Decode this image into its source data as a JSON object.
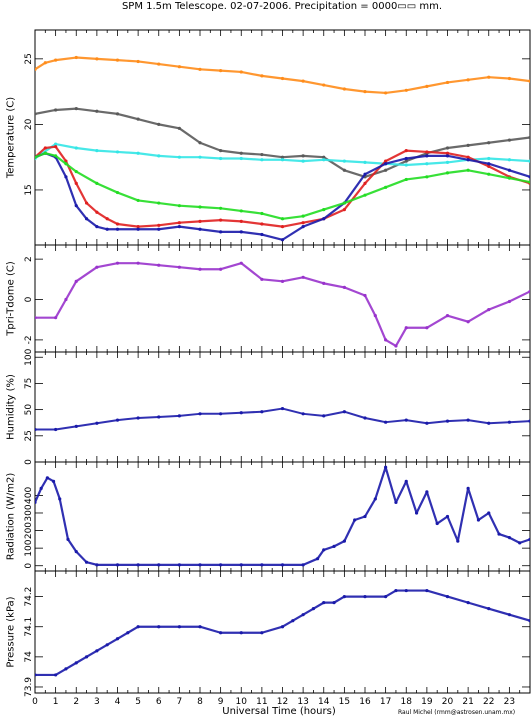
{
  "title": "SPM 1.5m Telescope. 02-07-2006. Precipitation = 0000▭▭ mm.",
  "xlabel": "Universal Time (hours)",
  "credit": "Raul Michel (rmm@astrosen.unam.mx)",
  "colors": {
    "orange": "#ff8c1a",
    "gray": "#5a5a5a",
    "cyan": "#33e6e6",
    "red": "#e02020",
    "blue": "#1a1aaa",
    "green": "#22dd22",
    "purple": "#9933cc"
  },
  "chart_data": [
    {
      "type": "scatter",
      "ylabel": "Temperature (C)",
      "x_ticks": [
        "0",
        "1",
        "2",
        "3",
        "4",
        "5",
        "6",
        "7",
        "8",
        "9",
        "10",
        "11",
        "12",
        "13",
        "14",
        "15",
        "16",
        "17",
        "18",
        "19",
        "20",
        "21",
        "22",
        "23"
      ],
      "y_ticks": [
        "15",
        "20",
        "25"
      ],
      "xlim": [
        0,
        24
      ],
      "ylim": [
        10.8,
        27.2
      ],
      "series": [
        {
          "color": "orange",
          "x": [
            0,
            0.5,
            1,
            2,
            3,
            4,
            5,
            6,
            7,
            8,
            9,
            10,
            11,
            12,
            13,
            14,
            15,
            16,
            17,
            18,
            19,
            20,
            21,
            22,
            23,
            24
          ],
          "y": [
            24.2,
            24.7,
            24.9,
            25.1,
            25.0,
            24.9,
            24.8,
            24.6,
            24.4,
            24.2,
            24.1,
            24.0,
            23.7,
            23.5,
            23.3,
            23.0,
            22.7,
            22.5,
            22.4,
            22.6,
            22.9,
            23.2,
            23.4,
            23.6,
            23.5,
            23.3
          ]
        },
        {
          "color": "gray",
          "x": [
            0,
            1,
            2,
            3,
            4,
            5,
            6,
            7,
            8,
            9,
            10,
            11,
            12,
            13,
            14,
            15,
            16,
            17,
            18,
            19,
            20,
            21,
            22,
            23,
            24
          ],
          "y": [
            20.8,
            21.1,
            21.2,
            21.0,
            20.8,
            20.4,
            20.0,
            19.7,
            18.6,
            18.0,
            17.8,
            17.7,
            17.5,
            17.6,
            17.5,
            16.5,
            16.0,
            16.5,
            17.2,
            17.8,
            18.2,
            18.4,
            18.6,
            18.8,
            19.0
          ]
        },
        {
          "color": "cyan",
          "x": [
            0,
            1,
            2,
            3,
            4,
            5,
            6,
            7,
            8,
            9,
            10,
            11,
            12,
            13,
            14,
            15,
            16,
            17,
            18,
            19,
            20,
            21,
            22,
            23,
            24
          ],
          "y": [
            17.4,
            18.5,
            18.2,
            18.0,
            17.9,
            17.8,
            17.6,
            17.5,
            17.5,
            17.4,
            17.4,
            17.3,
            17.3,
            17.2,
            17.3,
            17.2,
            17.1,
            17.0,
            16.9,
            17.0,
            17.1,
            17.3,
            17.4,
            17.3,
            17.2
          ]
        },
        {
          "color": "red",
          "x": [
            0,
            0.5,
            1,
            1.5,
            2,
            2.5,
            3,
            3.5,
            4,
            5,
            6,
            7,
            8,
            9,
            10,
            11,
            12,
            13,
            14,
            15,
            16,
            17,
            18,
            19,
            20,
            21,
            22,
            23,
            24
          ],
          "y": [
            17.5,
            18.2,
            18.3,
            17.2,
            15.5,
            14.0,
            13.3,
            12.8,
            12.4,
            12.2,
            12.3,
            12.5,
            12.6,
            12.7,
            12.6,
            12.4,
            12.2,
            12.5,
            12.8,
            13.5,
            15.5,
            17.2,
            18.0,
            17.9,
            17.8,
            17.5,
            16.8,
            16.0,
            15.5
          ]
        },
        {
          "color": "blue",
          "x": [
            0,
            0.5,
            1,
            1.5,
            2,
            2.5,
            3,
            3.5,
            4,
            5,
            6,
            7,
            8,
            9,
            10,
            11,
            12,
            13,
            14,
            15,
            16,
            17,
            18,
            19,
            20,
            21,
            22,
            23,
            24
          ],
          "y": [
            17.5,
            17.8,
            17.5,
            16.0,
            13.8,
            12.8,
            12.2,
            12.0,
            12.0,
            12.0,
            12.0,
            12.2,
            12.0,
            11.8,
            11.8,
            11.6,
            11.2,
            12.2,
            12.8,
            14.0,
            16.2,
            17.0,
            17.4,
            17.6,
            17.6,
            17.3,
            17.0,
            16.5,
            16.0
          ]
        },
        {
          "color": "green",
          "x": [
            0,
            0.5,
            1,
            1.5,
            2,
            3,
            4,
            5,
            6,
            7,
            8,
            9,
            10,
            11,
            12,
            13,
            14,
            15,
            16,
            17,
            18,
            19,
            20,
            21,
            22,
            23,
            24
          ],
          "y": [
            17.5,
            17.8,
            17.6,
            17.0,
            16.4,
            15.5,
            14.8,
            14.2,
            14.0,
            13.8,
            13.7,
            13.6,
            13.4,
            13.2,
            12.8,
            13.0,
            13.5,
            14.0,
            14.6,
            15.2,
            15.8,
            16.0,
            16.3,
            16.5,
            16.2,
            15.9,
            15.6
          ]
        }
      ]
    },
    {
      "type": "scatter",
      "ylabel": "Tpri-Tdome (C)",
      "y_ticks": [
        "-2",
        "0",
        "2"
      ],
      "xlim": [
        0,
        24
      ],
      "ylim": [
        -2.6,
        2.7
      ],
      "series": [
        {
          "color": "purple",
          "x": [
            0,
            1,
            1.5,
            2,
            3,
            4,
            5,
            6,
            7,
            8,
            9,
            10,
            11,
            12,
            13,
            14,
            15,
            16,
            16.5,
            17,
            17.5,
            18,
            19,
            20,
            21,
            22,
            23,
            24
          ],
          "y": [
            -0.9,
            -0.9,
            0.0,
            0.9,
            1.6,
            1.8,
            1.8,
            1.7,
            1.6,
            1.5,
            1.5,
            1.8,
            1.0,
            0.9,
            1.1,
            0.8,
            0.6,
            0.2,
            -0.8,
            -2.0,
            -2.3,
            -1.4,
            -1.4,
            -0.8,
            -1.1,
            -0.5,
            -0.1,
            0.4
          ]
        }
      ]
    },
    {
      "type": "line",
      "ylabel": "Humidity (%)",
      "y_ticks": [
        "0",
        "25",
        "50",
        "75",
        "100"
      ],
      "xlim": [
        0,
        24
      ],
      "ylim": [
        0,
        105
      ],
      "series": [
        {
          "color": "blue",
          "x": [
            0,
            1,
            2,
            3,
            4,
            5,
            6,
            7,
            8,
            9,
            10,
            11,
            12,
            13,
            14,
            15,
            16,
            17,
            18,
            19,
            20,
            21,
            22,
            23,
            24
          ],
          "y": [
            31,
            31,
            34,
            37,
            40,
            42,
            43,
            44,
            46,
            46,
            47,
            48,
            51,
            46,
            44,
            48,
            42,
            38,
            40,
            37,
            39,
            40,
            37,
            38,
            39
          ]
        }
      ]
    },
    {
      "type": "scatter",
      "ylabel": "Radiation (W/m2)",
      "y_ticks": [
        "0",
        "100",
        "200",
        "300",
        "400"
      ],
      "xlim": [
        0,
        24
      ],
      "ylim": [
        -30,
        590
      ],
      "series": [
        {
          "color": "blue",
          "x": [
            0,
            0.3,
            0.6,
            0.9,
            1.2,
            1.6,
            2.0,
            2.5,
            3,
            4,
            5,
            6,
            7,
            8,
            9,
            10,
            11,
            12,
            13,
            13.7,
            14,
            14.5,
            15,
            15.5,
            16,
            16.5,
            17,
            17.5,
            18,
            18.5,
            19,
            19.5,
            20,
            20.5,
            21,
            21.5,
            22,
            22.5,
            23,
            23.5,
            24
          ],
          "y": [
            360,
            440,
            500,
            480,
            380,
            150,
            80,
            20,
            5,
            5,
            5,
            5,
            5,
            5,
            5,
            5,
            5,
            5,
            5,
            40,
            90,
            110,
            140,
            260,
            280,
            380,
            560,
            360,
            480,
            300,
            420,
            240,
            280,
            140,
            440,
            260,
            300,
            180,
            160,
            130,
            150
          ]
        }
      ]
    },
    {
      "type": "scatter",
      "ylabel": "Pressure (kPa)",
      "y_ticks": [
        "73.9",
        "74",
        "74.1",
        "74.2"
      ],
      "xlim": [
        0,
        24
      ],
      "ylim": [
        73.88,
        74.285
      ],
      "series": [
        {
          "color": "blue",
          "x": [
            0,
            1,
            1.5,
            2,
            2.5,
            3,
            3.5,
            4,
            4.5,
            5,
            6,
            7,
            8,
            9,
            10,
            11,
            12,
            12.5,
            13,
            13.5,
            14,
            14.5,
            15,
            16,
            17,
            17.5,
            18,
            19,
            20,
            21,
            22,
            23,
            24
          ],
          "y": [
            73.94,
            73.94,
            73.96,
            73.98,
            74.0,
            74.02,
            74.04,
            74.06,
            74.08,
            74.1,
            74.1,
            74.1,
            74.1,
            74.08,
            74.08,
            74.08,
            74.1,
            74.12,
            74.14,
            74.16,
            74.18,
            74.18,
            74.2,
            74.2,
            74.2,
            74.22,
            74.22,
            74.22,
            74.2,
            74.18,
            74.16,
            74.14,
            74.12
          ]
        }
      ]
    }
  ]
}
